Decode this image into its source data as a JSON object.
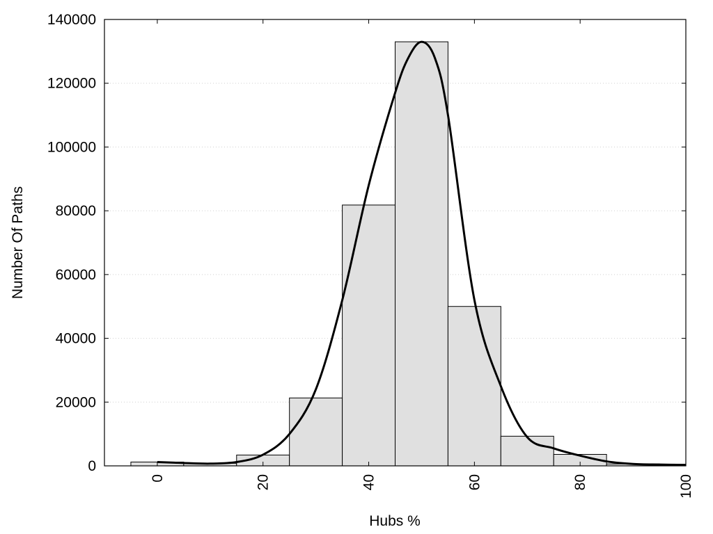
{
  "chart_data": {
    "type": "bar",
    "xlabel": "Hubs %",
    "ylabel": "Number Of Paths",
    "xlim": [
      -10,
      100
    ],
    "ylim": [
      0,
      140000
    ],
    "xticks": [
      0,
      20,
      40,
      60,
      80,
      100
    ],
    "yticks": [
      0,
      20000,
      40000,
      60000,
      80000,
      100000,
      120000,
      140000
    ],
    "bin_width": 10,
    "bars": [
      {
        "x": 0,
        "value": 1200
      },
      {
        "x": 10,
        "value": 800
      },
      {
        "x": 20,
        "value": 3400
      },
      {
        "x": 30,
        "value": 21300
      },
      {
        "x": 40,
        "value": 81800
      },
      {
        "x": 50,
        "value": 133000
      },
      {
        "x": 60,
        "value": 50000
      },
      {
        "x": 70,
        "value": 9300
      },
      {
        "x": 80,
        "value": 3600
      },
      {
        "x": 90,
        "value": 600
      }
    ],
    "curve": {
      "x": [
        0,
        5,
        10,
        15,
        20,
        25,
        30,
        35,
        40,
        45,
        47.5,
        50,
        52.5,
        55,
        60,
        65,
        70,
        75,
        80,
        85,
        90,
        95,
        100
      ],
      "y": [
        1200,
        900,
        700,
        1200,
        3500,
        10000,
        24000,
        52000,
        88000,
        117000,
        128000,
        133000,
        128000,
        110000,
        52000,
        25000,
        9000,
        5500,
        3200,
        1400,
        600,
        400,
        300
      ]
    },
    "grid": "y-dotted",
    "colors": {
      "bar_fill": "#e0e0e0",
      "bar_stroke": "#000000",
      "curve": "#000000"
    }
  }
}
